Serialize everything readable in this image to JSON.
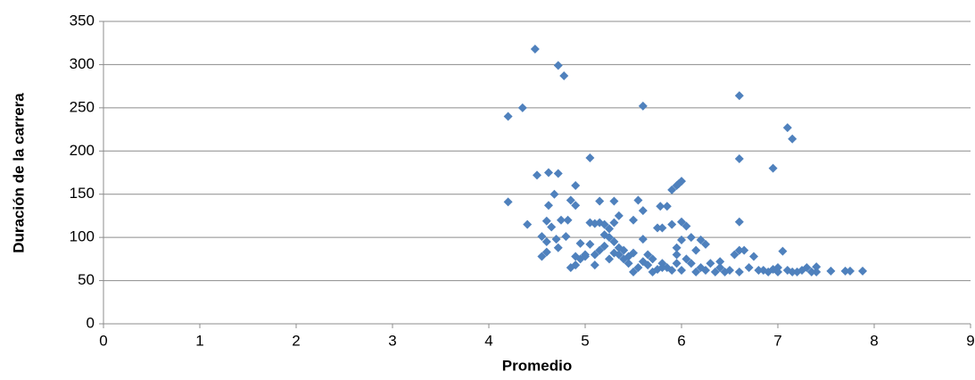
{
  "chart_data": {
    "type": "scatter",
    "x_label": "Promedio",
    "y_label": "Duración de la carrera",
    "xlim": [
      0,
      9
    ],
    "xticks": [
      0,
      1,
      2,
      3,
      4,
      5,
      6,
      7,
      8,
      9
    ],
    "ylim": [
      0,
      350
    ],
    "yticks": [
      0,
      50,
      100,
      150,
      200,
      250,
      300,
      350
    ],
    "grid": true,
    "color": "#4f81bd",
    "x": [
      4.2,
      4.2,
      4.35,
      4.48,
      4.72,
      4.78,
      5.6,
      6.6,
      6.6,
      7.1,
      7.15,
      6.95,
      5.05,
      4.5,
      4.62,
      4.72,
      4.9,
      4.68,
      4.62,
      4.9,
      5.15,
      5.3,
      5.55,
      5.6,
      5.9,
      5.95,
      6.0,
      5.97,
      4.4,
      4.55,
      4.6,
      4.65,
      4.75,
      4.82,
      4.85,
      4.8,
      4.6,
      4.7,
      4.72,
      4.55,
      4.6,
      4.85,
      4.9,
      4.95,
      5.05,
      5.1,
      5.15,
      5.2,
      5.25,
      5.3,
      5.35,
      5.2,
      5.25,
      5.3,
      5.3,
      5.05,
      5.1,
      5.0,
      4.95,
      5.15,
      5.2,
      5.35,
      5.4,
      5.45,
      5.55,
      5.6,
      5.65,
      5.75,
      5.8,
      5.78,
      5.85,
      5.9,
      6.0,
      6.05,
      6.0,
      5.95,
      6.1,
      6.2,
      6.25,
      6.15,
      5.7,
      5.8,
      5.85,
      5.9,
      5.95,
      6.05,
      6.1,
      6.2,
      6.3,
      6.4,
      6.5,
      6.55,
      6.6,
      6.65,
      6.6,
      6.75,
      6.7,
      6.8,
      6.9,
      7.0,
      7.05,
      7.1,
      7.2,
      7.3,
      7.4,
      7.55,
      7.7,
      7.75,
      7.88,
      7.4,
      7.25,
      7.0,
      6.45,
      6.35,
      6.25,
      6.0,
      5.75,
      5.65,
      5.5,
      5.45,
      5.25,
      5.1,
      4.9,
      5.0,
      5.5,
      5.6,
      5.7,
      5.8,
      5.95,
      6.15,
      6.4,
      6.6,
      6.85,
      6.95,
      7.15,
      7.35,
      5.4,
      5.35,
      5.5
    ],
    "values": [
      240,
      141,
      250,
      318,
      299,
      287,
      252,
      264,
      191,
      227,
      214,
      180,
      192,
      172,
      175,
      174,
      160,
      150,
      137,
      137,
      142,
      142,
      143,
      131,
      155,
      160,
      165,
      162,
      115,
      101,
      119,
      112,
      120,
      120,
      143,
      101,
      95,
      98,
      88,
      78,
      83,
      65,
      68,
      93,
      117,
      116,
      117,
      115,
      110,
      117,
      125,
      103,
      100,
      95,
      82,
      92,
      80,
      78,
      75,
      85,
      90,
      80,
      75,
      70,
      65,
      98,
      80,
      111,
      111,
      136,
      136,
      115,
      118,
      113,
      97,
      88,
      100,
      97,
      92,
      85,
      75,
      70,
      65,
      62,
      80,
      75,
      70,
      65,
      70,
      65,
      62,
      80,
      85,
      85,
      118,
      78,
      65,
      62,
      60,
      65,
      84,
      62,
      60,
      65,
      66,
      61,
      61,
      61,
      61,
      60,
      62,
      60,
      60,
      60,
      62,
      62,
      63,
      68,
      60,
      78,
      75,
      68,
      78,
      80,
      82,
      72,
      60,
      65,
      70,
      60,
      72,
      60,
      62,
      63,
      60,
      60,
      85,
      88,
      120
    ]
  }
}
